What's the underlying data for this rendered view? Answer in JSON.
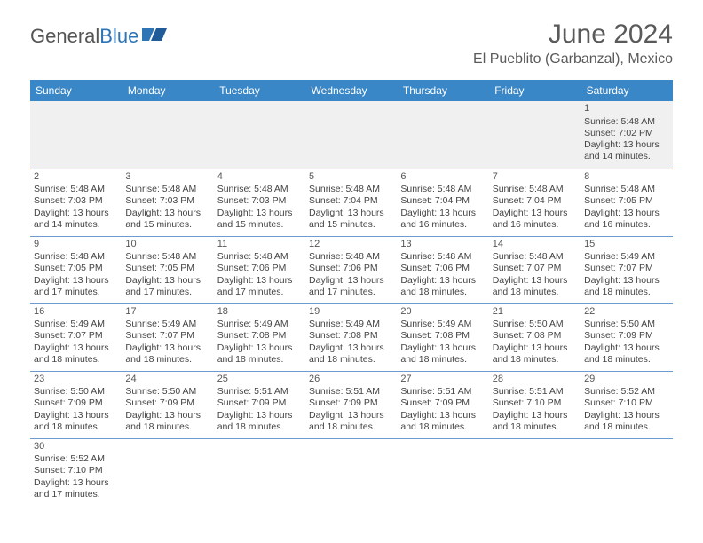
{
  "brand": {
    "part1": "General",
    "part2": "Blue"
  },
  "title": "June 2024",
  "location": "El Pueblito (Garbanzal), Mexico",
  "colors": {
    "header_bg": "#3a87c7",
    "header_text": "#ffffff",
    "divider": "#6b9bd1",
    "brand_blue": "#2e75b6",
    "text": "#444444",
    "empty_bg": "#f0f0f0"
  },
  "days_of_week": [
    "Sunday",
    "Monday",
    "Tuesday",
    "Wednesday",
    "Thursday",
    "Friday",
    "Saturday"
  ],
  "weeks": [
    [
      null,
      null,
      null,
      null,
      null,
      null,
      {
        "n": "1",
        "sr": "Sunrise: 5:48 AM",
        "ss": "Sunset: 7:02 PM",
        "dl1": "Daylight: 13 hours",
        "dl2": "and 14 minutes."
      }
    ],
    [
      {
        "n": "2",
        "sr": "Sunrise: 5:48 AM",
        "ss": "Sunset: 7:03 PM",
        "dl1": "Daylight: 13 hours",
        "dl2": "and 14 minutes."
      },
      {
        "n": "3",
        "sr": "Sunrise: 5:48 AM",
        "ss": "Sunset: 7:03 PM",
        "dl1": "Daylight: 13 hours",
        "dl2": "and 15 minutes."
      },
      {
        "n": "4",
        "sr": "Sunrise: 5:48 AM",
        "ss": "Sunset: 7:03 PM",
        "dl1": "Daylight: 13 hours",
        "dl2": "and 15 minutes."
      },
      {
        "n": "5",
        "sr": "Sunrise: 5:48 AM",
        "ss": "Sunset: 7:04 PM",
        "dl1": "Daylight: 13 hours",
        "dl2": "and 15 minutes."
      },
      {
        "n": "6",
        "sr": "Sunrise: 5:48 AM",
        "ss": "Sunset: 7:04 PM",
        "dl1": "Daylight: 13 hours",
        "dl2": "and 16 minutes."
      },
      {
        "n": "7",
        "sr": "Sunrise: 5:48 AM",
        "ss": "Sunset: 7:04 PM",
        "dl1": "Daylight: 13 hours",
        "dl2": "and 16 minutes."
      },
      {
        "n": "8",
        "sr": "Sunrise: 5:48 AM",
        "ss": "Sunset: 7:05 PM",
        "dl1": "Daylight: 13 hours",
        "dl2": "and 16 minutes."
      }
    ],
    [
      {
        "n": "9",
        "sr": "Sunrise: 5:48 AM",
        "ss": "Sunset: 7:05 PM",
        "dl1": "Daylight: 13 hours",
        "dl2": "and 17 minutes."
      },
      {
        "n": "10",
        "sr": "Sunrise: 5:48 AM",
        "ss": "Sunset: 7:05 PM",
        "dl1": "Daylight: 13 hours",
        "dl2": "and 17 minutes."
      },
      {
        "n": "11",
        "sr": "Sunrise: 5:48 AM",
        "ss": "Sunset: 7:06 PM",
        "dl1": "Daylight: 13 hours",
        "dl2": "and 17 minutes."
      },
      {
        "n": "12",
        "sr": "Sunrise: 5:48 AM",
        "ss": "Sunset: 7:06 PM",
        "dl1": "Daylight: 13 hours",
        "dl2": "and 17 minutes."
      },
      {
        "n": "13",
        "sr": "Sunrise: 5:48 AM",
        "ss": "Sunset: 7:06 PM",
        "dl1": "Daylight: 13 hours",
        "dl2": "and 18 minutes."
      },
      {
        "n": "14",
        "sr": "Sunrise: 5:48 AM",
        "ss": "Sunset: 7:07 PM",
        "dl1": "Daylight: 13 hours",
        "dl2": "and 18 minutes."
      },
      {
        "n": "15",
        "sr": "Sunrise: 5:49 AM",
        "ss": "Sunset: 7:07 PM",
        "dl1": "Daylight: 13 hours",
        "dl2": "and 18 minutes."
      }
    ],
    [
      {
        "n": "16",
        "sr": "Sunrise: 5:49 AM",
        "ss": "Sunset: 7:07 PM",
        "dl1": "Daylight: 13 hours",
        "dl2": "and 18 minutes."
      },
      {
        "n": "17",
        "sr": "Sunrise: 5:49 AM",
        "ss": "Sunset: 7:07 PM",
        "dl1": "Daylight: 13 hours",
        "dl2": "and 18 minutes."
      },
      {
        "n": "18",
        "sr": "Sunrise: 5:49 AM",
        "ss": "Sunset: 7:08 PM",
        "dl1": "Daylight: 13 hours",
        "dl2": "and 18 minutes."
      },
      {
        "n": "19",
        "sr": "Sunrise: 5:49 AM",
        "ss": "Sunset: 7:08 PM",
        "dl1": "Daylight: 13 hours",
        "dl2": "and 18 minutes."
      },
      {
        "n": "20",
        "sr": "Sunrise: 5:49 AM",
        "ss": "Sunset: 7:08 PM",
        "dl1": "Daylight: 13 hours",
        "dl2": "and 18 minutes."
      },
      {
        "n": "21",
        "sr": "Sunrise: 5:50 AM",
        "ss": "Sunset: 7:08 PM",
        "dl1": "Daylight: 13 hours",
        "dl2": "and 18 minutes."
      },
      {
        "n": "22",
        "sr": "Sunrise: 5:50 AM",
        "ss": "Sunset: 7:09 PM",
        "dl1": "Daylight: 13 hours",
        "dl2": "and 18 minutes."
      }
    ],
    [
      {
        "n": "23",
        "sr": "Sunrise: 5:50 AM",
        "ss": "Sunset: 7:09 PM",
        "dl1": "Daylight: 13 hours",
        "dl2": "and 18 minutes."
      },
      {
        "n": "24",
        "sr": "Sunrise: 5:50 AM",
        "ss": "Sunset: 7:09 PM",
        "dl1": "Daylight: 13 hours",
        "dl2": "and 18 minutes."
      },
      {
        "n": "25",
        "sr": "Sunrise: 5:51 AM",
        "ss": "Sunset: 7:09 PM",
        "dl1": "Daylight: 13 hours",
        "dl2": "and 18 minutes."
      },
      {
        "n": "26",
        "sr": "Sunrise: 5:51 AM",
        "ss": "Sunset: 7:09 PM",
        "dl1": "Daylight: 13 hours",
        "dl2": "and 18 minutes."
      },
      {
        "n": "27",
        "sr": "Sunrise: 5:51 AM",
        "ss": "Sunset: 7:09 PM",
        "dl1": "Daylight: 13 hours",
        "dl2": "and 18 minutes."
      },
      {
        "n": "28",
        "sr": "Sunrise: 5:51 AM",
        "ss": "Sunset: 7:10 PM",
        "dl1": "Daylight: 13 hours",
        "dl2": "and 18 minutes."
      },
      {
        "n": "29",
        "sr": "Sunrise: 5:52 AM",
        "ss": "Sunset: 7:10 PM",
        "dl1": "Daylight: 13 hours",
        "dl2": "and 18 minutes."
      }
    ],
    [
      {
        "n": "30",
        "sr": "Sunrise: 5:52 AM",
        "ss": "Sunset: 7:10 PM",
        "dl1": "Daylight: 13 hours",
        "dl2": "and 17 minutes."
      },
      null,
      null,
      null,
      null,
      null,
      null
    ]
  ]
}
